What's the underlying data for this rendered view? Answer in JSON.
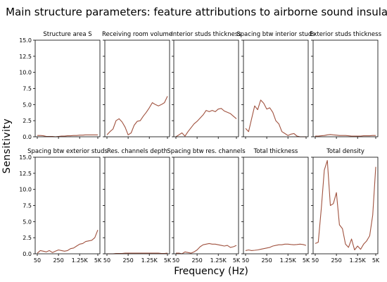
{
  "figure": {
    "title": "Main structure parameters: feature attributions to airborne sound insulation",
    "xlabel": "Frequency (Hz)",
    "ylabel": "Sensitivity",
    "line_color": "#a0523f"
  },
  "chart_data": {
    "type": "line",
    "layout": {
      "rows": 2,
      "cols": 5,
      "sharex": true,
      "sharey": true
    },
    "x_ticks": [
      "50",
      "250",
      "1.25K",
      "5K"
    ],
    "y_ticks": [
      "0.0",
      "2.5",
      "5.0",
      "7.5",
      "10.0",
      "12.5",
      "15.0"
    ],
    "ylim": [
      0,
      15
    ],
    "x_index_range": [
      0,
      20
    ],
    "x_tick_index": [
      0,
      7,
      14,
      20
    ],
    "panels": [
      {
        "title": "Structure area S",
        "values": [
          0.2,
          0.2,
          0.15,
          0.05,
          0.05,
          0.05,
          0.0,
          0.05,
          0.1,
          0.1,
          0.15,
          0.15,
          0.2,
          0.2,
          0.25,
          0.25,
          0.3,
          0.3,
          0.3,
          0.3,
          0.3
        ]
      },
      {
        "title": "Receiving room volume",
        "values": [
          0.3,
          0.8,
          1.2,
          2.5,
          2.8,
          2.3,
          1.5,
          0.3,
          0.6,
          1.8,
          2.4,
          2.5,
          3.2,
          3.8,
          4.5,
          5.3,
          5.0,
          4.8,
          5.0,
          5.3,
          6.3
        ]
      },
      {
        "title": "Interior studs thickness",
        "values": [
          0.0,
          0.3,
          0.6,
          0.1,
          0.8,
          1.4,
          2.0,
          2.4,
          2.9,
          3.4,
          4.1,
          3.9,
          4.1,
          3.9,
          4.3,
          4.4,
          4.0,
          3.8,
          3.6,
          3.2,
          2.8
        ]
      },
      {
        "title": "Spacing btw interior studs",
        "values": [
          1.3,
          0.8,
          2.8,
          4.8,
          4.2,
          5.7,
          5.2,
          4.3,
          4.5,
          3.8,
          2.5,
          2.0,
          0.8,
          0.5,
          0.2,
          0.4,
          0.5,
          0.1,
          0.0,
          0.0,
          0.0
        ]
      },
      {
        "title": "Exterior studs thickness",
        "values": [
          0.1,
          0.1,
          0.15,
          0.2,
          0.3,
          0.35,
          0.3,
          0.25,
          0.2,
          0.2,
          0.2,
          0.15,
          0.1,
          0.1,
          0.1,
          0.1,
          0.15,
          0.15,
          0.15,
          0.2,
          0.2
        ]
      },
      {
        "title": "Spacing btw exterior studs",
        "values": [
          0.1,
          0.5,
          0.4,
          0.3,
          0.5,
          0.2,
          0.4,
          0.6,
          0.5,
          0.4,
          0.5,
          0.8,
          0.9,
          1.2,
          1.5,
          1.6,
          1.9,
          2.0,
          2.1,
          2.5,
          3.7
        ]
      },
      {
        "title": "Res. channels depth",
        "values": [
          0.0,
          0.0,
          0.0,
          0.05,
          0.05,
          0.05,
          0.1,
          0.1,
          0.1,
          0.1,
          0.1,
          0.1,
          0.1,
          0.1,
          0.1,
          0.1,
          0.1,
          0.1,
          0.05,
          0.05,
          0.1
        ]
      },
      {
        "title": "Spacing btw res. channels",
        "values": [
          0.1,
          0.1,
          0.0,
          0.3,
          0.2,
          0.1,
          0.3,
          0.6,
          1.1,
          1.4,
          1.5,
          1.6,
          1.5,
          1.5,
          1.4,
          1.3,
          1.2,
          1.3,
          1.0,
          1.1,
          1.3
        ]
      },
      {
        "title": "Total thickness",
        "values": [
          0.5,
          0.6,
          0.5,
          0.55,
          0.6,
          0.7,
          0.8,
          0.9,
          1.0,
          1.2,
          1.3,
          1.4,
          1.4,
          1.5,
          1.5,
          1.45,
          1.4,
          1.45,
          1.5,
          1.45,
          1.3
        ]
      },
      {
        "title": "Total density",
        "values": [
          1.6,
          1.8,
          7.0,
          13.0,
          14.5,
          7.5,
          7.8,
          9.5,
          4.5,
          3.9,
          1.5,
          1.0,
          2.3,
          0.6,
          1.2,
          0.7,
          1.5,
          2.0,
          2.8,
          6.0,
          13.5
        ]
      }
    ]
  }
}
